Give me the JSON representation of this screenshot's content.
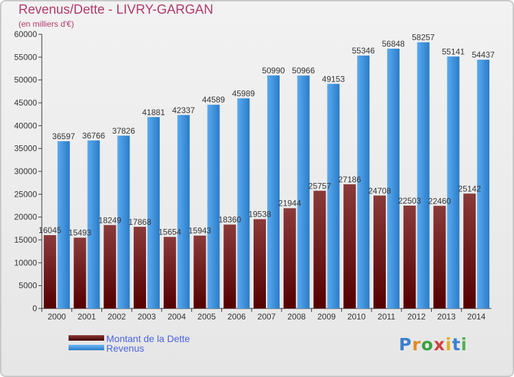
{
  "title": "Revenus/Dette - LIVRY-GARGAN",
  "subtitle": "(en milliers d'€)",
  "colors": {
    "dette_top": "#8b3a3a",
    "dette_bottom": "#550000",
    "revenus_top": "#5aaaf0",
    "revenus_bottom": "#2a7cc8",
    "title": "#b03a6a",
    "legend_text": "#4a63e0"
  },
  "legend": [
    {
      "label": "Montant de la Dette"
    },
    {
      "label": "Revenus"
    }
  ],
  "logo": {
    "text": "Proxiti"
  },
  "chart_data": {
    "type": "bar",
    "title": "Revenus/Dette - LIVRY-GARGAN",
    "subtitle": "(en milliers d'€)",
    "categories": [
      "2000",
      "2001",
      "2002",
      "2003",
      "2004",
      "2005",
      "2006",
      "2007",
      "2008",
      "2009",
      "2010",
      "2011",
      "2012",
      "2013",
      "2014"
    ],
    "series": [
      {
        "name": "Montant de la Dette",
        "values": [
          16045,
          15493,
          18249,
          17868,
          15654,
          15943,
          18360,
          19538,
          21944,
          25757,
          27186,
          24708,
          22503,
          22460,
          25142
        ],
        "labels": [
          "16045",
          "15493",
          "18249",
          "17868",
          "15654",
          "15943",
          "18360",
          "19538",
          "21944",
          "25757",
          "27186",
          "24708",
          "22503",
          "22460",
          "25142"
        ]
      },
      {
        "name": "Revenus",
        "values": [
          36597,
          36766,
          37826,
          41881,
          42337,
          44589,
          45989,
          50990,
          50966,
          49153,
          55346,
          56848,
          58257,
          55141,
          54437
        ],
        "labels": [
          "36597",
          "36766",
          "37826",
          "41881",
          "42337",
          "44589",
          "45989",
          "50990",
          "50966",
          "49153",
          "55346",
          "56848",
          "58257",
          "55141",
          "54437"
        ]
      }
    ],
    "yticks": [
      0,
      5000,
      10000,
      15000,
      20000,
      25000,
      30000,
      35000,
      40000,
      45000,
      50000,
      55000,
      60000
    ],
    "ylim": [
      0,
      60000
    ],
    "grid": false,
    "legend_position": "bottom-left"
  }
}
